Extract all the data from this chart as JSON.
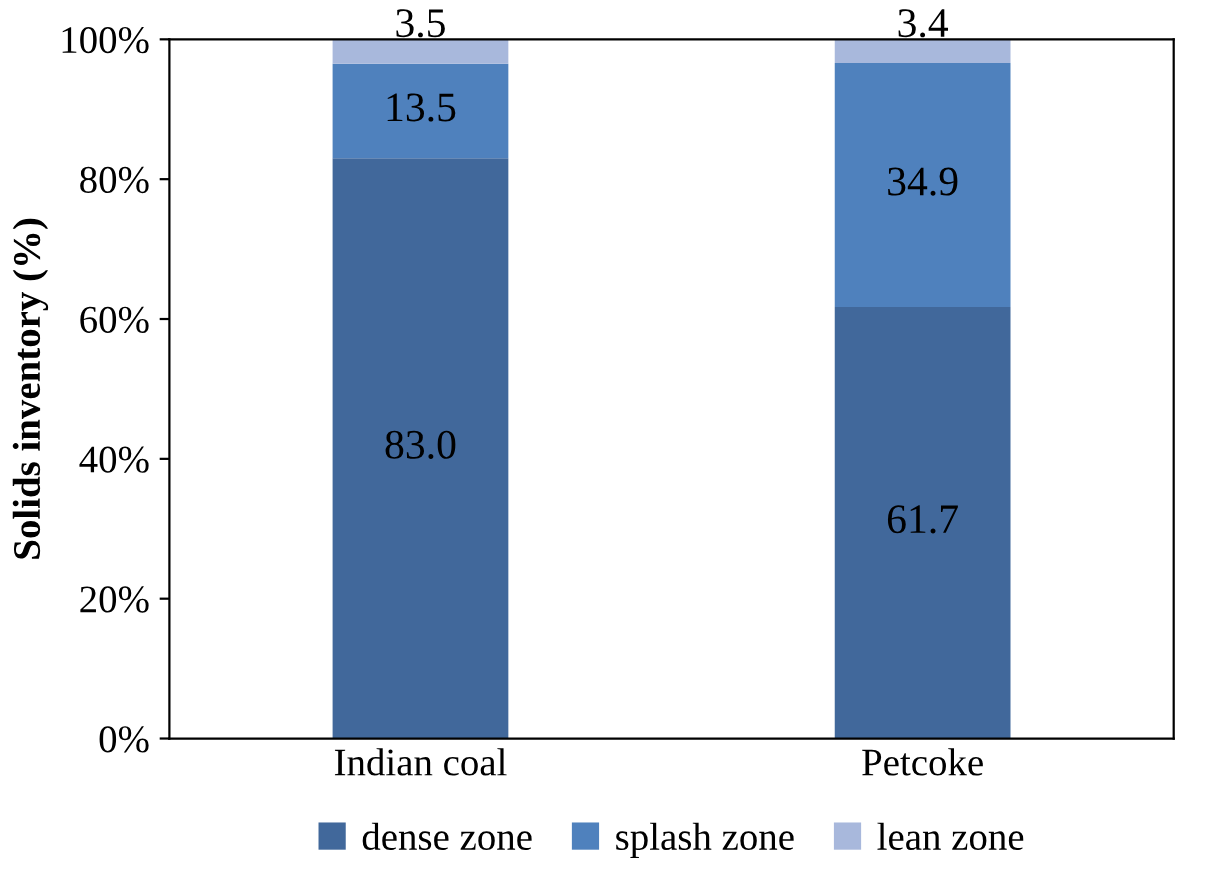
{
  "chart_data": {
    "type": "bar",
    "stacked": true,
    "ylabel": "Solids inventory (%)",
    "categories": [
      "Indian coal",
      "Petcoke"
    ],
    "series": [
      {
        "name": "dense zone",
        "color": "#41689b",
        "values": [
          83.0,
          61.7
        ],
        "value_labels": [
          "83.0",
          "61.7"
        ]
      },
      {
        "name": "splash zone",
        "color": "#4f81bd",
        "values": [
          13.5,
          34.9
        ],
        "value_labels": [
          "13.5",
          "34.9"
        ]
      },
      {
        "name": "lean zone",
        "color": "#a8b8dc",
        "values": [
          3.5,
          3.4
        ],
        "value_labels": [
          "3.5",
          "3.4"
        ]
      }
    ],
    "ylim": [
      0,
      100
    ],
    "yticks": [
      {
        "value": 0,
        "label": "0%"
      },
      {
        "value": 20,
        "label": "20%"
      },
      {
        "value": 40,
        "label": "40%"
      },
      {
        "value": 60,
        "label": "60%"
      },
      {
        "value": 80,
        "label": "80%"
      },
      {
        "value": 100,
        "label": "100%"
      }
    ],
    "grid": false,
    "legend": "bottom"
  }
}
